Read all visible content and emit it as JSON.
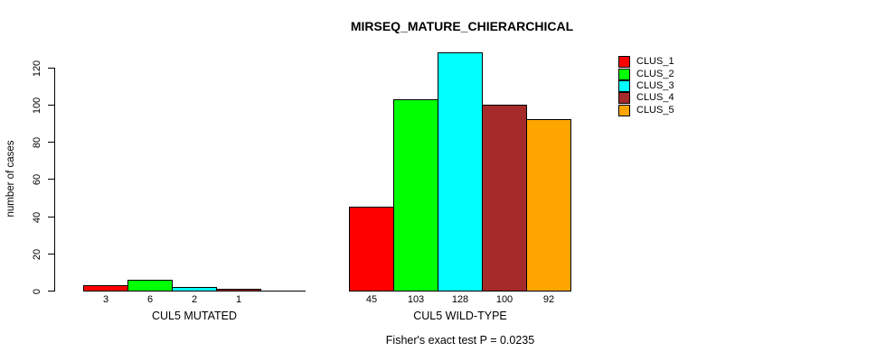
{
  "title": "MIRSEQ_MATURE_CHIERARCHICAL",
  "footer": "Fisher's exact test P = 0.0235",
  "colors": {
    "axis": "#000000",
    "background": "#ffffff",
    "clus_1": "#ff0000",
    "clus_2": "#00ff00",
    "clus_3": "#00ffff",
    "clus_4": "#a52a2a",
    "clus_5": "#ffa500"
  },
  "chart_data": {
    "type": "bar",
    "title": "MIRSEQ_MATURE_CHIERARCHICAL",
    "xlabel": "",
    "ylabel": "number of cases",
    "ylim": [
      0,
      128
    ],
    "yticks": [
      0,
      20,
      40,
      60,
      80,
      100,
      120
    ],
    "grid": false,
    "legend_position": "top-right",
    "categories": [
      "CUL5 MUTATED",
      "CUL5 WILD-TYPE"
    ],
    "series": [
      {
        "name": "CLUS_1",
        "color": "#ff0000",
        "values": [
          3,
          45
        ]
      },
      {
        "name": "CLUS_2",
        "color": "#00ff00",
        "values": [
          6,
          103
        ]
      },
      {
        "name": "CLUS_3",
        "color": "#00ffff",
        "values": [
          2,
          128
        ]
      },
      {
        "name": "CLUS_4",
        "color": "#a52a2a",
        "values": [
          1,
          100
        ]
      },
      {
        "name": "CLUS_5",
        "color": "#ffa500",
        "values": [
          0,
          92
        ]
      }
    ],
    "bar_value_labels": {
      "CUL5 MUTATED": [
        "3",
        "6",
        "2",
        "1",
        ""
      ],
      "CUL5 WILD-TYPE": [
        "45",
        "103",
        "128",
        "100",
        "92"
      ]
    },
    "annotation": "Fisher's exact test P = 0.0235"
  }
}
